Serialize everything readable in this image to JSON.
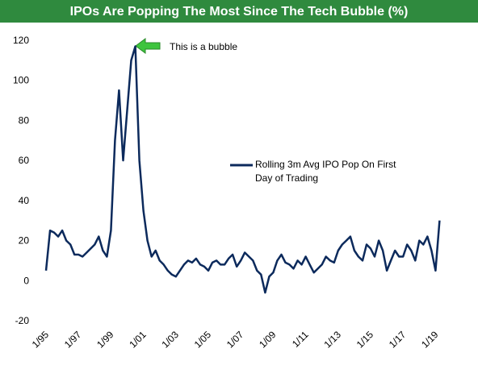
{
  "chart_data": {
    "type": "line",
    "title": "IPOs Are Popping The Most Since The Tech Bubble (%)",
    "annotation": "This is a bubble",
    "x": [
      "1/95",
      "4/95",
      "7/95",
      "10/95",
      "1/96",
      "4/96",
      "7/96",
      "10/96",
      "1/97",
      "4/97",
      "7/97",
      "10/97",
      "1/98",
      "4/98",
      "7/98",
      "10/98",
      "1/99",
      "4/99",
      "7/99",
      "10/99",
      "1/00",
      "4/00",
      "7/00",
      "10/00",
      "1/01",
      "4/01",
      "7/01",
      "10/01",
      "1/02",
      "4/02",
      "7/02",
      "10/02",
      "1/03",
      "4/03",
      "7/03",
      "10/03",
      "1/04",
      "4/04",
      "7/04",
      "10/04",
      "1/05",
      "4/05",
      "7/05",
      "10/05",
      "1/06",
      "4/06",
      "7/06",
      "10/06",
      "1/07",
      "4/07",
      "7/07",
      "10/07",
      "1/08",
      "4/08",
      "7/08",
      "10/08",
      "1/09",
      "4/09",
      "7/09",
      "10/09",
      "1/10",
      "4/10",
      "7/10",
      "10/10",
      "1/11",
      "4/11",
      "7/11",
      "10/11",
      "1/12",
      "4/12",
      "7/12",
      "10/12",
      "1/13",
      "4/13",
      "7/13",
      "10/13",
      "1/14",
      "4/14",
      "7/14",
      "10/14",
      "1/15",
      "4/15",
      "7/15",
      "10/15",
      "1/16",
      "4/16",
      "7/16",
      "10/16",
      "1/17",
      "4/17",
      "7/17",
      "10/17",
      "1/18",
      "4/18",
      "7/18",
      "10/18",
      "1/19",
      "4/19"
    ],
    "series": [
      {
        "name": "Rolling 3m Avg IPO Pop On First Day of Trading",
        "color": "#0c2a5c",
        "values": [
          5,
          25,
          24,
          22,
          25,
          20,
          18,
          13,
          13,
          12,
          14,
          16,
          18,
          22,
          15,
          12,
          25,
          70,
          95,
          60,
          85,
          110,
          117,
          60,
          35,
          20,
          12,
          15,
          10,
          8,
          5,
          3,
          2,
          5,
          8,
          10,
          9,
          11,
          8,
          7,
          5,
          9,
          10,
          8,
          8,
          11,
          13,
          7,
          10,
          14,
          12,
          10,
          5,
          3,
          -6,
          2,
          4,
          10,
          13,
          9,
          8,
          6,
          10,
          8,
          12,
          8,
          4,
          6,
          8,
          12,
          10,
          9,
          15,
          18,
          20,
          22,
          15,
          12,
          10,
          18,
          16,
          12,
          20,
          15,
          5,
          10,
          15,
          12,
          12,
          18,
          15,
          10,
          20,
          18,
          22,
          15,
          5,
          30
        ]
      }
    ],
    "ylim": [
      -20,
      120
    ],
    "yticks": [
      -20,
      0,
      20,
      40,
      60,
      80,
      100,
      120
    ],
    "xticks": [
      "1/95",
      "1/97",
      "1/99",
      "1/01",
      "1/03",
      "1/05",
      "1/07",
      "1/09",
      "1/11",
      "1/13",
      "1/15",
      "1/17",
      "1/19"
    ],
    "grid": false
  }
}
